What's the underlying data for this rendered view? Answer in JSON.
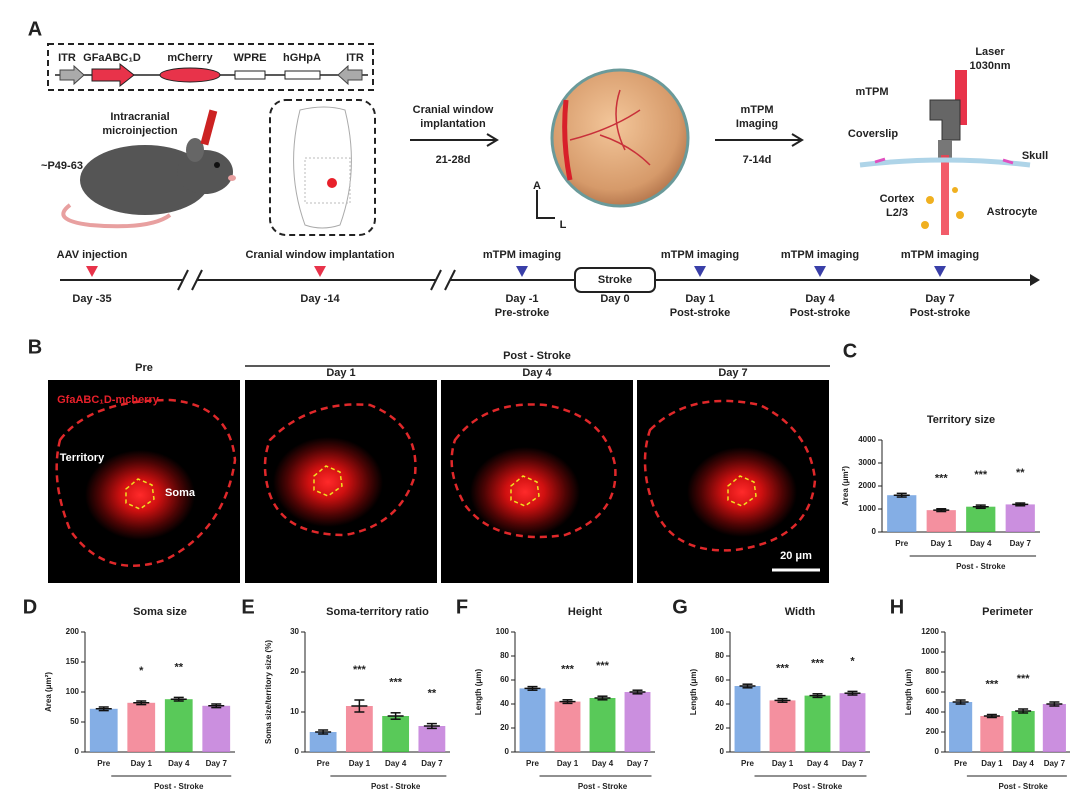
{
  "panel_a": {
    "label": "A",
    "construct": [
      "ITR",
      "GFaABC₁D",
      "mCherry",
      "WPRE",
      "hGHpA",
      "ITR"
    ],
    "injection": [
      "Intracranial",
      "microinjection"
    ],
    "age": "~P49-63",
    "step1": [
      "Cranial window",
      "implantation"
    ],
    "step1_time": "21-28d",
    "step2": [
      "mTPM",
      "Imaging"
    ],
    "step2_time": "7-14d",
    "axes": [
      "A",
      "L"
    ],
    "setup": {
      "laser": [
        "Laser",
        "1030nm"
      ],
      "mtpm": "mTPM",
      "coverslip": "Coverslip",
      "skull": "Skull",
      "cortex": [
        "Cortex",
        "L2/3"
      ],
      "astrocyte": "Astrocyte"
    },
    "timeline": [
      {
        "top": "AAV injection",
        "bottom": [
          "Day -35"
        ],
        "marker": "#e8334a"
      },
      {
        "top": "Cranial window implantation",
        "bottom": [
          "Day -14"
        ],
        "marker": "#e8334a"
      },
      {
        "top": "mTPM imaging",
        "bottom": [
          "Day -1",
          "Pre-stroke"
        ],
        "marker": "#3a3fa8"
      },
      {
        "box": "Stroke",
        "bottom": [
          "Day 0"
        ]
      },
      {
        "top": "mTPM imaging",
        "bottom": [
          "Day 1",
          "Post-stroke"
        ],
        "marker": "#3a3fa8"
      },
      {
        "top": "mTPM imaging",
        "bottom": [
          "Day 4",
          "Post-stroke"
        ],
        "marker": "#3a3fa8"
      },
      {
        "top": "mTPM imaging",
        "bottom": [
          "Day 7",
          "Post-stroke"
        ],
        "marker": "#3a3fa8"
      }
    ]
  },
  "panel_b": {
    "label": "B",
    "group": "Post - Stroke",
    "columns": [
      "Pre",
      "Day 1",
      "Day 4",
      "Day 7"
    ],
    "marker_label": "GfaABC₁D-mcherry",
    "territory": "Territory",
    "soma": "Soma",
    "scale_bar": "20 μm"
  },
  "chart_data": [
    {
      "type": "bar",
      "panel": "C",
      "title": "Territory  size",
      "ylabel": "Area (μm²)",
      "categories": [
        "Pre",
        "Day 1",
        "Day 4",
        "Day 7"
      ],
      "group_label": "Post - Stroke",
      "values": [
        1600,
        950,
        1100,
        1200
      ],
      "errors": [
        80,
        60,
        70,
        60
      ],
      "annotations": [
        null,
        "***",
        "***",
        "**"
      ],
      "colors": [
        "#6fa0e0",
        "#f27d8e",
        "#3cc03c",
        "#c27bd9"
      ],
      "ylim": [
        0,
        4000
      ],
      "yticks": [
        0,
        1000,
        2000,
        3000,
        4000
      ]
    },
    {
      "type": "bar",
      "panel": "D",
      "title": "Soma  size",
      "ylabel": "Area (μm²)",
      "categories": [
        "Pre",
        "Day 1",
        "Day 4",
        "Day 7"
      ],
      "group_label": "Post - Stroke",
      "values": [
        72,
        82,
        88,
        77
      ],
      "errors": [
        3,
        3,
        3,
        3
      ],
      "annotations": [
        null,
        "*",
        "**",
        null
      ],
      "colors": [
        "#6fa0e0",
        "#f27d8e",
        "#3cc03c",
        "#c27bd9"
      ],
      "ylim": [
        0,
        200
      ],
      "yticks": [
        0,
        50,
        100,
        150,
        200
      ]
    },
    {
      "type": "bar",
      "panel": "E",
      "title": "Soma-territory ratio",
      "ylabel": "Soma size/territory size (%)",
      "categories": [
        "Pre",
        "Day 1",
        "Day 4",
        "Day 7"
      ],
      "group_label": "Post - Stroke",
      "values": [
        5,
        11.5,
        9,
        6.5
      ],
      "errors": [
        0.5,
        1.5,
        0.8,
        0.6
      ],
      "annotations": [
        null,
        "***",
        "***",
        "**"
      ],
      "colors": [
        "#6fa0e0",
        "#f27d8e",
        "#3cc03c",
        "#c27bd9"
      ],
      "ylim": [
        0,
        30
      ],
      "yticks": [
        0,
        10,
        20,
        30
      ]
    },
    {
      "type": "bar",
      "panel": "F",
      "title": "Height",
      "ylabel": "Length (μm)",
      "categories": [
        "Pre",
        "Day 1",
        "Day 4",
        "Day 7"
      ],
      "group_label": "Post - Stroke",
      "values": [
        53,
        42,
        45,
        50
      ],
      "errors": [
        1.5,
        1.5,
        1.5,
        1.5
      ],
      "annotations": [
        null,
        "***",
        "***",
        null
      ],
      "colors": [
        "#6fa0e0",
        "#f27d8e",
        "#3cc03c",
        "#c27bd9"
      ],
      "ylim": [
        0,
        100
      ],
      "yticks": [
        0,
        20,
        40,
        60,
        80,
        100
      ]
    },
    {
      "type": "bar",
      "panel": "G",
      "title": "Width",
      "ylabel": "Length (μm)",
      "categories": [
        "Pre",
        "Day 1",
        "Day 4",
        "Day 7"
      ],
      "group_label": "Post - Stroke",
      "values": [
        55,
        43,
        47,
        49
      ],
      "errors": [
        1.5,
        1.5,
        1.5,
        1.5
      ],
      "annotations": [
        null,
        "***",
        "***",
        "*"
      ],
      "colors": [
        "#6fa0e0",
        "#f27d8e",
        "#3cc03c",
        "#c27bd9"
      ],
      "ylim": [
        0,
        100
      ],
      "yticks": [
        0,
        20,
        40,
        60,
        80,
        100
      ]
    },
    {
      "type": "bar",
      "panel": "H",
      "title": "Perimeter",
      "ylabel": "Length (μm)",
      "categories": [
        "Pre",
        "Day 1",
        "Day 4",
        "Day 7"
      ],
      "group_label": "Post - Stroke",
      "values": [
        500,
        360,
        410,
        480
      ],
      "errors": [
        20,
        15,
        20,
        20
      ],
      "annotations": [
        null,
        "***",
        "***",
        null
      ],
      "colors": [
        "#6fa0e0",
        "#f27d8e",
        "#3cc03c",
        "#c27bd9"
      ],
      "ylim": [
        0,
        1200
      ],
      "yticks": [
        0,
        200,
        400,
        600,
        800,
        1000,
        1200
      ]
    }
  ]
}
